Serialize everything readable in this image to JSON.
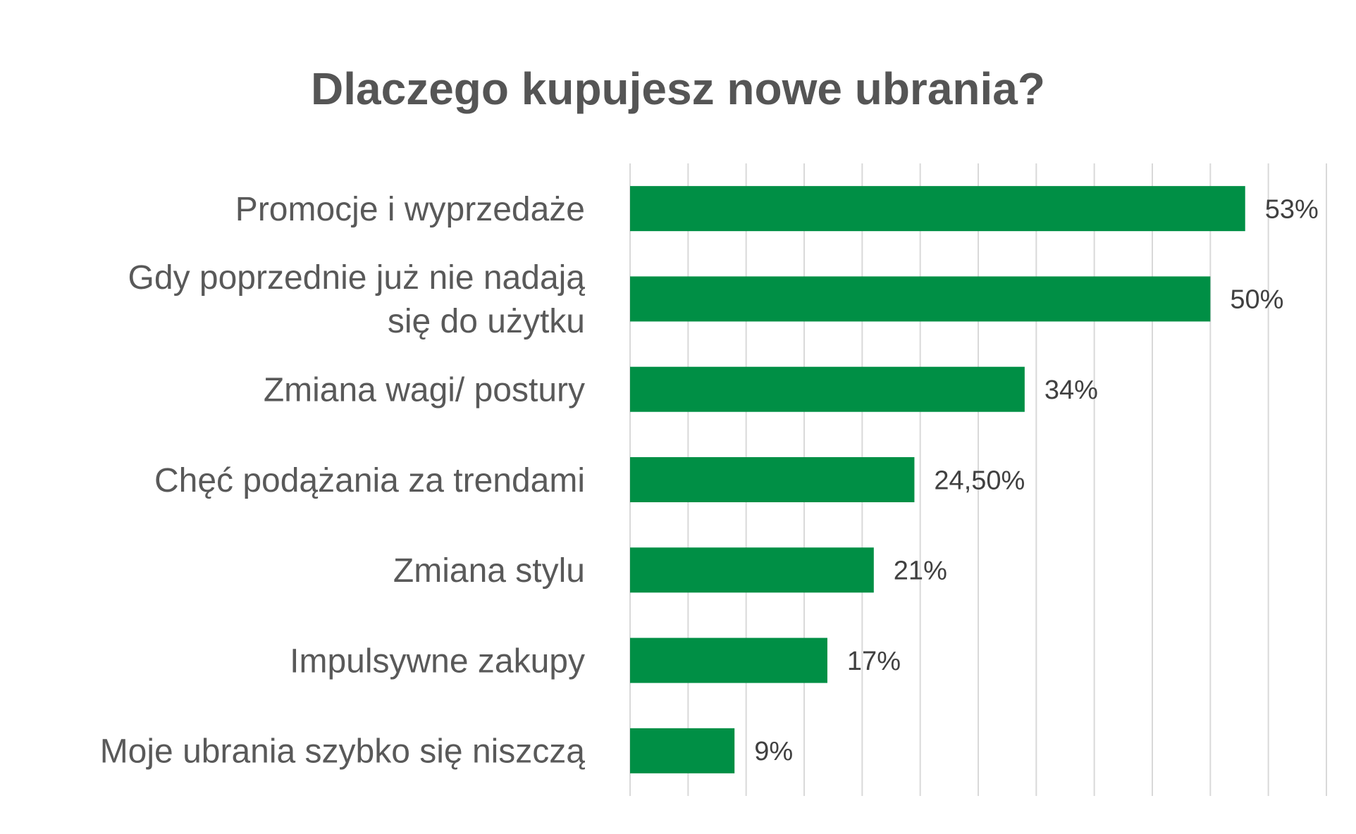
{
  "chart_data": {
    "type": "bar",
    "orientation": "horizontal",
    "title": "Dlaczego kupujesz nowe ubrania?",
    "xlabel": "",
    "ylabel": "",
    "categories": [
      [
        "Promocje i wyprzedaże"
      ],
      [
        "Gdy poprzednie już nie nadają",
        "się do użytku"
      ],
      [
        "Zmiana wagi/ postury"
      ],
      [
        "Chęć podążania za trendami"
      ],
      [
        "Zmiana stylu"
      ],
      [
        "Impulsywne zakupy"
      ],
      [
        "Moje ubrania szybko się niszczą"
      ]
    ],
    "values": [
      53,
      50,
      34,
      24.5,
      21,
      17,
      9
    ],
    "data_labels": [
      "53%",
      "50%",
      "34%",
      "24,50%",
      "21%",
      "17%",
      "9%"
    ],
    "xlim": [
      0,
      60
    ],
    "grid_step": 5,
    "grid": true,
    "legend": "none",
    "colors": {
      "bar": "#008f45",
      "grid": "#d9d9d9",
      "category_text": "#595959",
      "label_text": "#404040",
      "title_text": "#555555"
    }
  }
}
